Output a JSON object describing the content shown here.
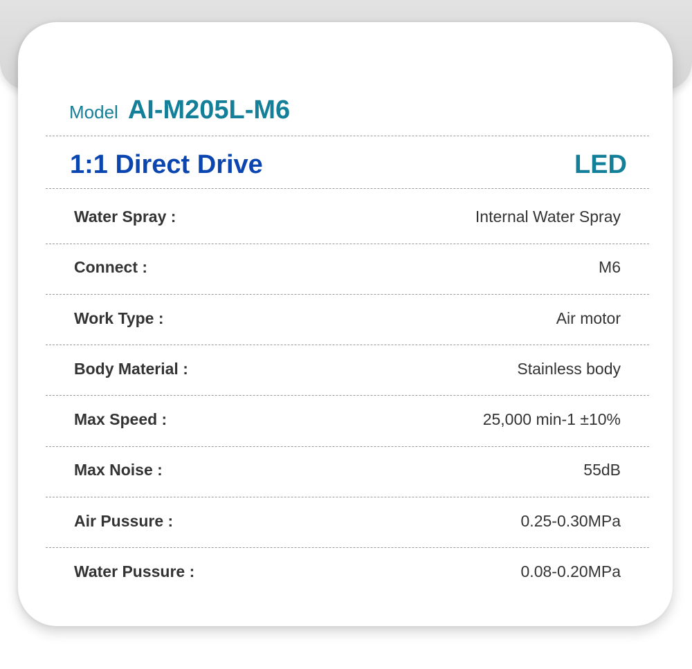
{
  "header": {
    "model_label": "Model",
    "model_code": "AI-M205L-M6",
    "drive": "1:1 Direct Drive",
    "light": "LED"
  },
  "colors": {
    "model": "#137f98",
    "drive": "#0a45b0",
    "text": "#333333"
  },
  "specs": [
    {
      "label": "Water Spray :",
      "value": "Internal Water Spray"
    },
    {
      "label": "Connect :",
      "value": "M6"
    },
    {
      "label": "Work Type :",
      "value": "Air motor"
    },
    {
      "label": "Body Material :",
      "value": "Stainless body"
    },
    {
      "label": "Max Speed :",
      "value": "25,000 min-1 ±10%"
    },
    {
      "label": "Max Noise :",
      "value": "55dB"
    },
    {
      "label": "Air Pussure :",
      "value": "0.25-0.30MPa"
    },
    {
      "label": "Water Pussure :",
      "value": "0.08-0.20MPa"
    }
  ]
}
